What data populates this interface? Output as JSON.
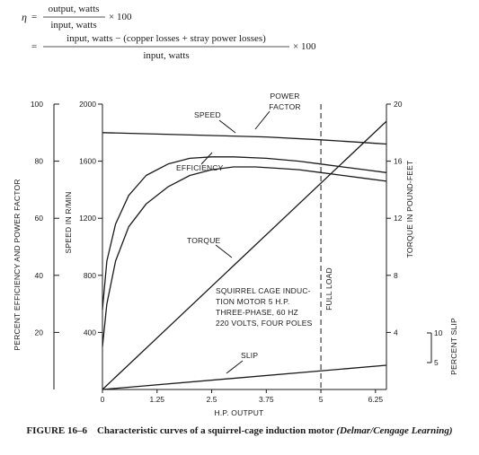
{
  "formula": {
    "symbol": "η",
    "eq1": "=",
    "eq1_numerator": "output, watts",
    "eq1_denominator": "input, watts",
    "eq1_factor": "× 100",
    "eq2": "=",
    "eq2_numerator": "input, watts − (copper losses + stray power losses)",
    "eq2_denominator": "input, watts",
    "eq2_factor": "× 100"
  },
  "caption": {
    "label": "FIGURE 16–6",
    "text": "Characteristic curves of a squirrel-cage induction motor",
    "source": "(Delmar/Cengage Learning)"
  },
  "chart_data": {
    "type": "line",
    "xlabel": "H.P. OUTPUT",
    "x_ticks": [
      "0",
      "1.25",
      "2.5",
      "3.75",
      "5",
      "6.25"
    ],
    "xlim": [
      0,
      6.5
    ],
    "axes": {
      "efficiency_pf": {
        "label": "PERCENT EFFICIENCY AND POWER FACTOR",
        "range": [
          0,
          100
        ],
        "ticks": [
          "20",
          "40",
          "60",
          "80",
          "100"
        ]
      },
      "speed": {
        "label": "SPEED IN R/MIN",
        "range": [
          0,
          2000
        ],
        "ticks": [
          "400",
          "800",
          "1200",
          "1600",
          "2000"
        ]
      },
      "torque": {
        "label": "TORQUE IN POUND-FEET",
        "range": [
          0,
          20
        ],
        "ticks": [
          "4",
          "8",
          "12",
          "16",
          "20"
        ]
      },
      "slip": {
        "label": "PERCENT SLIP",
        "ticks": [
          "10",
          "5"
        ]
      }
    },
    "full_load": {
      "x": 5,
      "label": "FULL LOAD"
    },
    "annotation": [
      "SQUIRREL CAGE INDUC-",
      "TION MOTOR 5 H.P.",
      "THREE-PHASE, 60 HZ",
      "220 VOLTS, FOUR POLES"
    ],
    "series": [
      {
        "label": "SPEED",
        "axis": "speed",
        "x": [
          0,
          1.25,
          2.5,
          3.75,
          5,
          6.25,
          6.5
        ],
        "y": [
          1800,
          1790,
          1780,
          1770,
          1750,
          1725,
          1720
        ]
      },
      {
        "label": "POWER FACTOR",
        "axis": "efficiency_pf",
        "x": [
          0,
          0.1,
          0.3,
          0.6,
          1.0,
          1.5,
          2.0,
          2.5,
          3.0,
          3.75,
          4.5,
          5.0,
          5.5,
          6.0,
          6.5
        ],
        "y": [
          28,
          45,
          58,
          68,
          75,
          79,
          81,
          81.5,
          81.5,
          81,
          80,
          79,
          78,
          77,
          76
        ]
      },
      {
        "label": "EFFICIENCY",
        "axis": "efficiency_pf",
        "x": [
          0,
          0.1,
          0.3,
          0.6,
          1.0,
          1.5,
          2.0,
          2.5,
          3.0,
          3.5,
          4.0,
          4.5,
          5.0,
          5.5,
          6.0,
          6.5
        ],
        "y": [
          15,
          30,
          45,
          57,
          65,
          71,
          75,
          77,
          78,
          78,
          77.5,
          77,
          76,
          75,
          74,
          73
        ]
      },
      {
        "label": "TORQUE",
        "axis": "torque",
        "x": [
          0,
          6.5
        ],
        "y": [
          0,
          18.8
        ]
      },
      {
        "label": "SLIP",
        "axis": "efficiency_pf",
        "x": [
          0,
          6.5
        ],
        "y": [
          0,
          9
        ]
      }
    ]
  }
}
